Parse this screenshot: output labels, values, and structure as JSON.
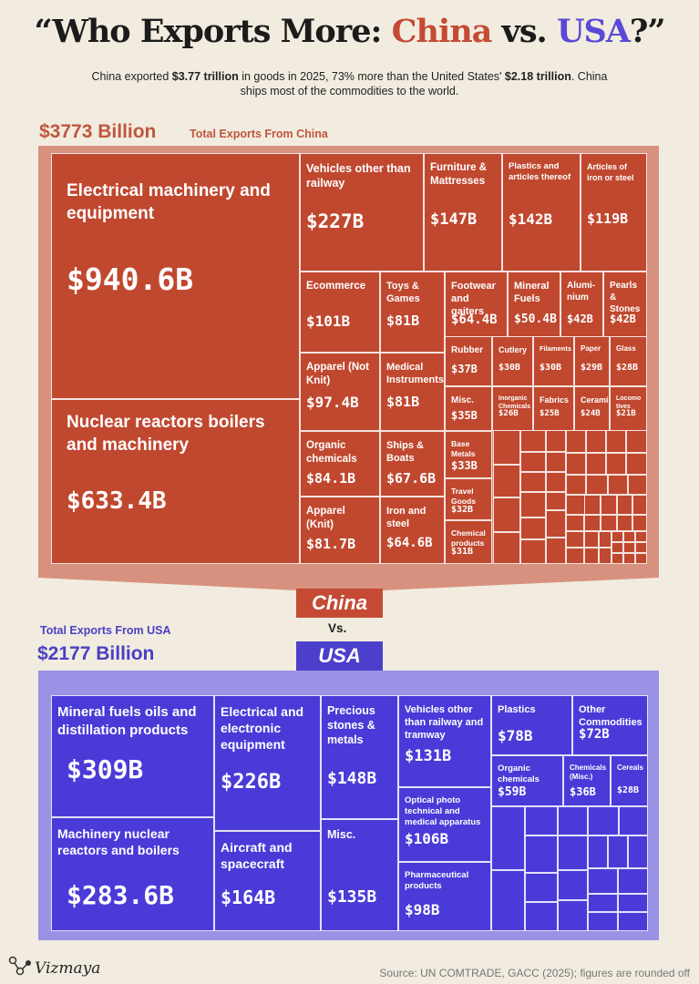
{
  "title": {
    "pre": "“Who Exports More: ",
    "china": "China",
    "mid": " vs. ",
    "usa": "USA",
    "post": "?”"
  },
  "subtitle": {
    "t1": "China exported ",
    "b1": "$3.77 trillion",
    "t2": " in goods in 2025, 73% more than the United States' ",
    "b2": "$2.18 trillion",
    "t3": ". China ships most of the commodities to the world."
  },
  "china": {
    "total": "$3773 Billion",
    "total_label": "Total Exports From China",
    "tab": "China"
  },
  "vs": "Vs.",
  "usa": {
    "total": "$2177 Billion",
    "total_label": "Total Exports From USA",
    "tab": "USA"
  },
  "source": "Source: UN COMTRADE, GACC (2025); figures are rounded off",
  "brand": "Vizmaya",
  "colors": {
    "china": "#c0482f",
    "usa": "#4a3bd8",
    "china_funnel": "#d9917f",
    "usa_funnel": "#9a92e4",
    "background": "#f1ecdf"
  },
  "chart_data": [
    {
      "type": "treemap",
      "title": "Total Exports From China",
      "unit": "USD billion",
      "total": 3773,
      "items": [
        {
          "label": "Electrical machinery and equipment",
          "value": 940.6,
          "display": "$940.6B"
        },
        {
          "label": "Nuclear reactors boilers and machinery",
          "value": 633.4,
          "display": "$633.4B"
        },
        {
          "label": "Vehicles other than railway",
          "value": 227,
          "display": "$227B"
        },
        {
          "label": "Furniture & Mattresses",
          "value": 147,
          "display": "$147B"
        },
        {
          "label": "Plastics and articles thereof",
          "value": 142,
          "display": "$142B"
        },
        {
          "label": "Articles of iron or steel",
          "value": 119,
          "display": "$119B"
        },
        {
          "label": "Ecommerce",
          "value": 101,
          "display": "$101B"
        },
        {
          "label": "Toys & Games",
          "value": 81,
          "display": "$81B"
        },
        {
          "label": "Footwear and gaiters",
          "value": 64.4,
          "display": "$64.4B"
        },
        {
          "label": "Mineral Fuels",
          "value": 50.4,
          "display": "$50.4B"
        },
        {
          "label": "Alumi-nium",
          "value": 42,
          "display": "$42B"
        },
        {
          "label": "Pearls & Stones",
          "value": 42,
          "display": "$42B"
        },
        {
          "label": "Apparel (Not Knit)",
          "value": 97.4,
          "display": "$97.4B"
        },
        {
          "label": "Medical Instruments",
          "value": 81,
          "display": "$81B"
        },
        {
          "label": "Organic chemicals",
          "value": 84.1,
          "display": "$84.1B"
        },
        {
          "label": "Ships & Boats",
          "value": 67.6,
          "display": "$67.6B"
        },
        {
          "label": "Apparel (Knit)",
          "value": 81.7,
          "display": "$81.7B"
        },
        {
          "label": "Iron and steel",
          "value": 64.6,
          "display": "$64.6B"
        },
        {
          "label": "Rubber",
          "value": 37,
          "display": "$37B"
        },
        {
          "label": "Cutlery",
          "value": 30,
          "display": "$30B"
        },
        {
          "label": "Filaments",
          "value": 30,
          "display": "$30B"
        },
        {
          "label": "Paper",
          "value": 29,
          "display": "$29B"
        },
        {
          "label": "Glass",
          "value": 28,
          "display": "$28B"
        },
        {
          "label": "Misc.",
          "value": 35,
          "display": "$35B"
        },
        {
          "label": "Inorganic Chemicals",
          "value": 26,
          "display": "$26B"
        },
        {
          "label": "Fabrics",
          "value": 25,
          "display": "$25B"
        },
        {
          "label": "Ceramic",
          "value": 24,
          "display": "$24B"
        },
        {
          "label": "Locomo tives",
          "value": 21,
          "display": "$21B"
        },
        {
          "label": "Base Metals",
          "value": 33,
          "display": "$33B"
        },
        {
          "label": "Travel Goods",
          "value": 32,
          "display": "$32B"
        },
        {
          "label": "Chemical products",
          "value": 31,
          "display": "$31B"
        }
      ]
    },
    {
      "type": "treemap",
      "title": "Total Exports From USA",
      "unit": "USD billion",
      "total": 2177,
      "items": [
        {
          "label": "Mineral fuels oils and distillation products",
          "value": 309,
          "display": "$309B"
        },
        {
          "label": "Machinery nuclear reactors and boilers",
          "value": 283.6,
          "display": "$283.6B"
        },
        {
          "label": "Electrical and electronic equipment",
          "value": 226,
          "display": "$226B"
        },
        {
          "label": "Aircraft and spacecraft",
          "value": 164,
          "display": "$164B"
        },
        {
          "label": "Precious stones & metals",
          "value": 148,
          "display": "$148B"
        },
        {
          "label": "Misc.",
          "value": 135,
          "display": "$135B"
        },
        {
          "label": "Vehicles other than railway and tramway",
          "value": 131,
          "display": "$131B"
        },
        {
          "label": "Optical photo technical and medical apparatus",
          "value": 106,
          "display": "$106B"
        },
        {
          "label": "Pharmaceutical products",
          "value": 98,
          "display": "$98B"
        },
        {
          "label": "Plastics",
          "value": 78,
          "display": "$78B"
        },
        {
          "label": "Other Commodities",
          "value": 72,
          "display": "$72B"
        },
        {
          "label": "Organic chemicals",
          "value": 59,
          "display": "$59B"
        },
        {
          "label": "Chemicals (Misc.)",
          "value": 36,
          "display": "$36B"
        },
        {
          "label": "Cereals",
          "value": 28,
          "display": "$28B"
        }
      ]
    }
  ]
}
